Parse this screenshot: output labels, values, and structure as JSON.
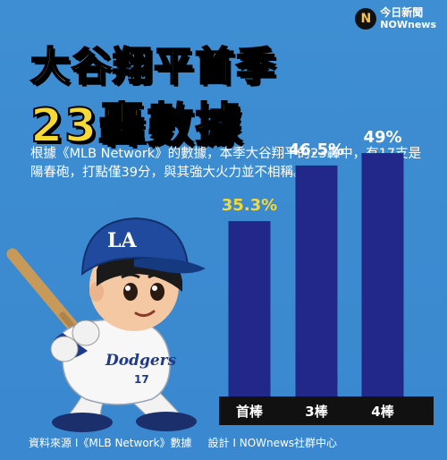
{
  "brand": {
    "logo_mark": "N",
    "line1": "今日新聞",
    "line2": "NOWnews"
  },
  "headline": {
    "line1": "大谷翔平首季",
    "line2": "23轟數據"
  },
  "description": "根據《MLB Network》的數據，本季大谷翔平的23轟中，有17支是陽春砲，打點僅39分，與其強大火力並不相稱。",
  "illustration": {
    "cap_logo": "LA",
    "jersey_text": "Dodgers",
    "jersey_number": "17"
  },
  "colors": {
    "background": "#3e8ed3",
    "bar": "#21288a",
    "highlight": "#f5d935",
    "axis": "#111111",
    "text": "#ffffff"
  },
  "chart_data": {
    "type": "bar",
    "categories": [
      "首棒",
      "3棒",
      "4棒"
    ],
    "values": [
      35.3,
      46.5,
      49
    ],
    "value_labels": [
      "35.3%",
      "46.5%",
      "49%"
    ],
    "highlighted_index": 0,
    "ylim": [
      0,
      60
    ]
  },
  "footer": {
    "source": "資料來源 I《MLB Network》數據",
    "design": "設計 I NOWnews社群中心"
  }
}
